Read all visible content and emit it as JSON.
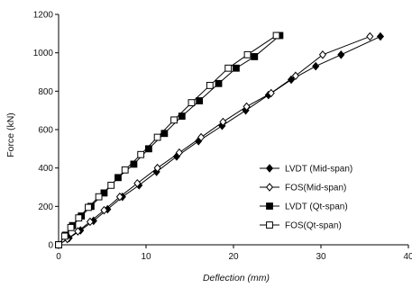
{
  "chart_data": {
    "type": "line",
    "xlabel": "Deflection (mm)",
    "ylabel": "Force (kN)",
    "xlim": [
      0,
      40
    ],
    "ylim": [
      0,
      1200
    ],
    "xticks": [
      0,
      10,
      20,
      30,
      40
    ],
    "yticks": [
      0,
      200,
      400,
      600,
      800,
      1000,
      1200
    ],
    "grid": false,
    "legend_position": "bottom-right",
    "series": [
      {
        "name": "LVDT (Mid-span)",
        "marker": "diamond-filled",
        "x": [
          0,
          1.2,
          2.5,
          4.0,
          5.6,
          7.3,
          9.2,
          11.2,
          13.5,
          16.0,
          18.7,
          21.4,
          24.0,
          26.6,
          29.4,
          32.3,
          36.8
        ],
        "y": [
          0,
          35,
          75,
          125,
          185,
          250,
          310,
          380,
          460,
          540,
          620,
          700,
          780,
          860,
          930,
          990,
          1085
        ]
      },
      {
        "name": "FOS(Mid-span)",
        "marker": "diamond-open",
        "x": [
          0,
          1.0,
          2.2,
          3.6,
          5.2,
          7.0,
          9.0,
          11.3,
          13.8,
          16.3,
          18.8,
          21.5,
          24.3,
          27.1,
          30.2,
          35.6
        ],
        "y": [
          0,
          30,
          70,
          120,
          180,
          250,
          320,
          400,
          480,
          560,
          640,
          720,
          790,
          880,
          990,
          1085
        ]
      },
      {
        "name": "LVDT (Qt-span)",
        "marker": "square-filled",
        "x": [
          0,
          0.8,
          1.6,
          2.6,
          3.7,
          5.2,
          6.8,
          8.6,
          10.3,
          12.1,
          14.1,
          16.1,
          18.3,
          20.3,
          22.4,
          25.3
        ],
        "y": [
          0,
          50,
          100,
          150,
          200,
          270,
          350,
          420,
          500,
          580,
          670,
          750,
          840,
          920,
          980,
          1090
        ]
      },
      {
        "name": "FOS(Qt-span)",
        "marker": "square-open",
        "x": [
          0,
          0.7,
          1.4,
          2.3,
          3.4,
          4.6,
          6.0,
          7.6,
          9.4,
          11.3,
          13.2,
          15.2,
          17.3,
          19.4,
          21.6,
          24.9
        ],
        "y": [
          0,
          45,
          90,
          140,
          195,
          250,
          310,
          390,
          470,
          560,
          650,
          740,
          830,
          920,
          990,
          1090
        ]
      }
    ]
  }
}
